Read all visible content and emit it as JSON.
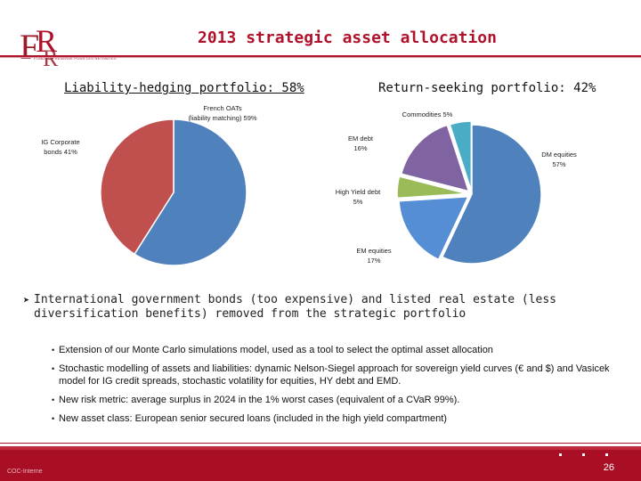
{
  "header": {
    "title": "2013 strategic asset allocation",
    "logo_letters": "FRR",
    "logo_tagline": "FONDS DE RESERVE POUR LES RETRAITES"
  },
  "chart_titles": {
    "left": "Liability-hedging portfolio: 58%",
    "right": "Return-seeking portfolio: 42%"
  },
  "chart_data": [
    {
      "type": "pie",
      "title": "Liability-hedging portfolio: 58%",
      "series": [
        {
          "label_lines": [
            "French OATs",
            "(liability matching) 59%"
          ],
          "value": 59,
          "color": "#4f81bd"
        },
        {
          "label_lines": [
            "IG Corporate",
            "bonds 41%"
          ],
          "value": 41,
          "color": "#c0504d"
        }
      ]
    },
    {
      "type": "pie",
      "title": "Return-seeking portfolio: 42%",
      "series": [
        {
          "label_lines": [
            "DM equities",
            "57%"
          ],
          "value": 57,
          "color": "#4f81bd"
        },
        {
          "label_lines": [
            "EM equities",
            "17%"
          ],
          "value": 17,
          "color": "#558ed5"
        },
        {
          "label_lines": [
            "High Yield debt",
            "5%"
          ],
          "value": 5,
          "color": "#9bbb59"
        },
        {
          "label_lines": [
            "EM debt",
            "16%"
          ],
          "value": 16,
          "color": "#8064a2"
        },
        {
          "label_lines": [
            "Commodities 5%"
          ],
          "value": 5,
          "color": "#4bacc6"
        }
      ]
    }
  ],
  "main_bullet": "International government bonds (too expensive) and listed real estate (less diversification benefits) removed from the strategic portfolio",
  "sub_bullets": [
    "Extension of our Monte Carlo simulations model, used as a tool to select the optimal asset allocation",
    "Stochastic modelling of assets and liabilities: dynamic Nelson-Siegel approach for sovereign yield curves (€ and $) and Vasicek model for IG credit spreads, stochastic volatility for equities, HY debt and EMD.",
    "New risk metric: average surplus in 2024 in the 1% worst cases (equivalent of a CVaR 99%).",
    "New asset class: European senior secured loans (included in the high yield compartment)"
  ],
  "footer": {
    "left_text": "COC-Interne",
    "page_number": "26"
  }
}
